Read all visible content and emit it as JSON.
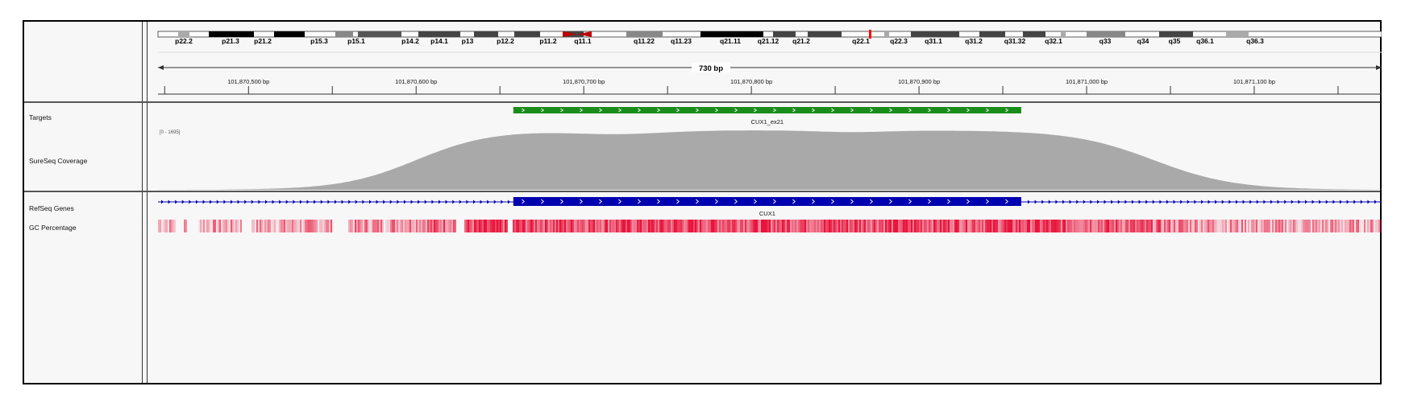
{
  "ideogram": {
    "bands": [
      "p22.2",
      "p21.3",
      "p21.2",
      "p15.3",
      "p15.1",
      "p14.2",
      "p14.1",
      "p13",
      "p12.2",
      "p11.2",
      "q11.1",
      "q11.22",
      "q11.23",
      "q21.11",
      "q21.12",
      "q21.2",
      "q22.1",
      "q22.3",
      "q31.1",
      "q31.2",
      "q31.32",
      "q32.1",
      "q33",
      "q34",
      "q35",
      "q36.1",
      "q36.3"
    ]
  },
  "ruler": {
    "span_label": "730 bp",
    "ticks": [
      "101,870,500 bp",
      "101,870,600 bp",
      "101,870,700 bp",
      "101,870,800 bp",
      "101,870,900 bp",
      "101,871,000 bp",
      "101,871,100 bp"
    ]
  },
  "tracks": {
    "targets_label": "Targets",
    "target_name": "CUX1_ex21",
    "coverage_label": "SureSeq Coverage",
    "coverage_range": "[0 - 1695]",
    "refseq_label": "RefSeq Genes",
    "gene_name": "CUX1",
    "gc_label": "GC Percentage"
  },
  "colors": {
    "target_bar": "#1a8c1a",
    "gene_bar": "#0000b0",
    "coverage_fill": "#a9a9a9",
    "gc_fill": "#e8143c",
    "centromere": "#c00000",
    "locus_marker": "#ff0000"
  }
}
